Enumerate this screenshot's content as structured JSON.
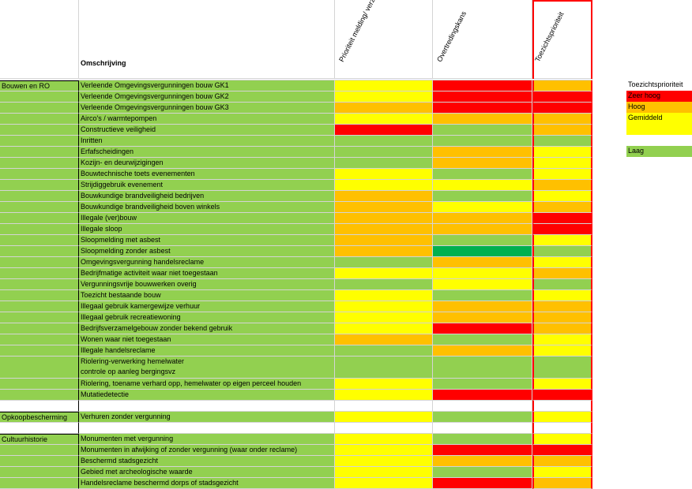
{
  "header": {
    "description": "Omschrijving",
    "col1": "Prioriteit melding/ verzoek",
    "col2": "Overtredingskans",
    "col3": "Toezichtsprioriteit"
  },
  "colors": {
    "red": "#ff0000",
    "orange": "#ffc000",
    "yellow": "#ffff00",
    "lightgreen": "#92d050",
    "darkgreen": "#00b050",
    "white": "#ffffff"
  },
  "legend": {
    "title": "Toezichtsprioriteit",
    "items": [
      {
        "label": "Zeer hoog",
        "color": "#ff0000"
      },
      {
        "label": "Hoog",
        "color": "#ffc000"
      },
      {
        "label": "Gemiddeld",
        "color": "#ffff00"
      },
      {
        "label": "Laag",
        "color": "#92d050"
      }
    ]
  },
  "rows": [
    {
      "category": "Bouwen en RO",
      "desc": "Verleende Omgevingsvergunningen bouw GK1",
      "c1": "yellow",
      "c2": "red",
      "c3": "orange"
    },
    {
      "category": "",
      "desc": "Verleende Omgevingsvergunningen bouw GK2",
      "c1": "yellow",
      "c2": "red",
      "c3": "red"
    },
    {
      "category": "",
      "desc": "Verleende Omgevingsvergunningen bouw GK3",
      "c1": "orange",
      "c2": "red",
      "c3": "red"
    },
    {
      "category": "",
      "desc": "Airco's / warmtepompen",
      "c1": "yellow",
      "c2": "orange",
      "c3": "orange"
    },
    {
      "category": "",
      "desc": "Constructieve veiligheid",
      "c1": "red",
      "c2": "lightgreen",
      "c3": "orange"
    },
    {
      "category": "",
      "desc": "Inritten",
      "c1": "lightgreen",
      "c2": "lightgreen",
      "c3": "lightgreen"
    },
    {
      "category": "",
      "desc": "Erfafscheidingen",
      "c1": "lightgreen",
      "c2": "orange",
      "c3": "yellow"
    },
    {
      "category": "",
      "desc": "Kozijn- en deurwijzigingen",
      "c1": "lightgreen",
      "c2": "orange",
      "c3": "yellow"
    },
    {
      "category": "",
      "desc": "Bouwtechnische toets evenementen",
      "c1": "yellow",
      "c2": "lightgreen",
      "c3": "yellow"
    },
    {
      "category": "",
      "desc": "Strijdiggebruik evenement",
      "c1": "yellow",
      "c2": "yellow",
      "c3": "orange"
    },
    {
      "category": "",
      "desc": "Bouwkundige brandveiligheid bedrijven",
      "c1": "orange",
      "c2": "lightgreen",
      "c3": "yellow"
    },
    {
      "category": "",
      "desc": "Bouwkundige brandveiligheid boven winkels",
      "c1": "orange",
      "c2": "yellow",
      "c3": "orange"
    },
    {
      "category": "",
      "desc": "Illegale (ver)bouw",
      "c1": "orange",
      "c2": "orange",
      "c3": "red"
    },
    {
      "category": "",
      "desc": "Illegale sloop",
      "c1": "orange",
      "c2": "orange",
      "c3": "red"
    },
    {
      "category": "",
      "desc": "Sloopmelding met asbest",
      "c1": "orange",
      "c2": "lightgreen",
      "c3": "yellow"
    },
    {
      "category": "",
      "desc": "Sloopmelding zonder asbest",
      "c1": "orange",
      "c2": "darkgreen",
      "c3": "lightgreen"
    },
    {
      "category": "",
      "desc": "Omgevingsvergunning handelsreclame",
      "c1": "lightgreen",
      "c2": "orange",
      "c3": "yellow"
    },
    {
      "category": "",
      "desc": "Bedrijfmatige activiteit waar niet toegestaan",
      "c1": "yellow",
      "c2": "yellow",
      "c3": "orange"
    },
    {
      "category": "",
      "desc": "Vergunningsvrije bouwwerken overig",
      "c1": "lightgreen",
      "c2": "yellow",
      "c3": "lightgreen"
    },
    {
      "category": "",
      "desc": "Toezicht bestaande bouw",
      "c1": "yellow",
      "c2": "lightgreen",
      "c3": "yellow"
    },
    {
      "category": "",
      "desc": "Illegaal gebruik kamergewijze verhuur",
      "c1": "yellow",
      "c2": "orange",
      "c3": "orange"
    },
    {
      "category": "",
      "desc": "Illegaal gebruik recreatiewoning",
      "c1": "yellow",
      "c2": "orange",
      "c3": "orange"
    },
    {
      "category": "",
      "desc": "Bedrijfsverzamelgebouw zonder bekend gebruik",
      "c1": "yellow",
      "c2": "red",
      "c3": "orange"
    },
    {
      "category": "",
      "desc": "Wonen waar niet toegestaan",
      "c1": "orange",
      "c2": "lightgreen",
      "c3": "yellow"
    },
    {
      "category": "",
      "desc": "Illegale handelsreclame",
      "c1": "lightgreen",
      "c2": "orange",
      "c3": "yellow"
    },
    {
      "category": "",
      "desc": "Riolering-verwerking hemelwater",
      "desc2": "controle op aanleg bergingsvz",
      "c1": "lightgreen",
      "c2": "lightgreen",
      "c3": "lightgreen",
      "double": true
    },
    {
      "category": "",
      "desc": "Riolering, toename verhard opp, hemelwater op eigen perceel houden",
      "c1": "yellow",
      "c2": "lightgreen",
      "c3": "yellow"
    },
    {
      "category": "",
      "desc": "Mutatiedetectie",
      "c1": "yellow",
      "c2": "red",
      "c3": "red"
    },
    {
      "category": "",
      "desc": "",
      "c1": "white",
      "c2": "white",
      "c3": "white",
      "white": true
    },
    {
      "category": "Opkoopbescherming",
      "desc": "Verhuren zonder vergunning",
      "c1": "yellow",
      "c2": "lightgreen",
      "c3": "yellow"
    },
    {
      "category": "",
      "desc": "",
      "c1": "white",
      "c2": "white",
      "c3": "white",
      "white": true
    },
    {
      "category": "Cultuurhistorie",
      "desc": "Monumenten met vergunning",
      "c1": "yellow",
      "c2": "lightgreen",
      "c3": "yellow"
    },
    {
      "category": "",
      "desc": "Monumenten in afwijking of zonder vergunning (waar onder reclame)",
      "c1": "yellow",
      "c2": "red",
      "c3": "red"
    },
    {
      "category": "",
      "desc": "Beschermd stadsgezicht",
      "c1": "yellow",
      "c2": "orange",
      "c3": "orange"
    },
    {
      "category": "",
      "desc": "Gebied met archeologische waarde",
      "c1": "yellow",
      "c2": "lightgreen",
      "c3": "yellow"
    },
    {
      "category": "",
      "desc": "Handelsreclame beschermd dorps of stadsgezicht",
      "c1": "yellow",
      "c2": "red",
      "c3": "orange"
    }
  ]
}
